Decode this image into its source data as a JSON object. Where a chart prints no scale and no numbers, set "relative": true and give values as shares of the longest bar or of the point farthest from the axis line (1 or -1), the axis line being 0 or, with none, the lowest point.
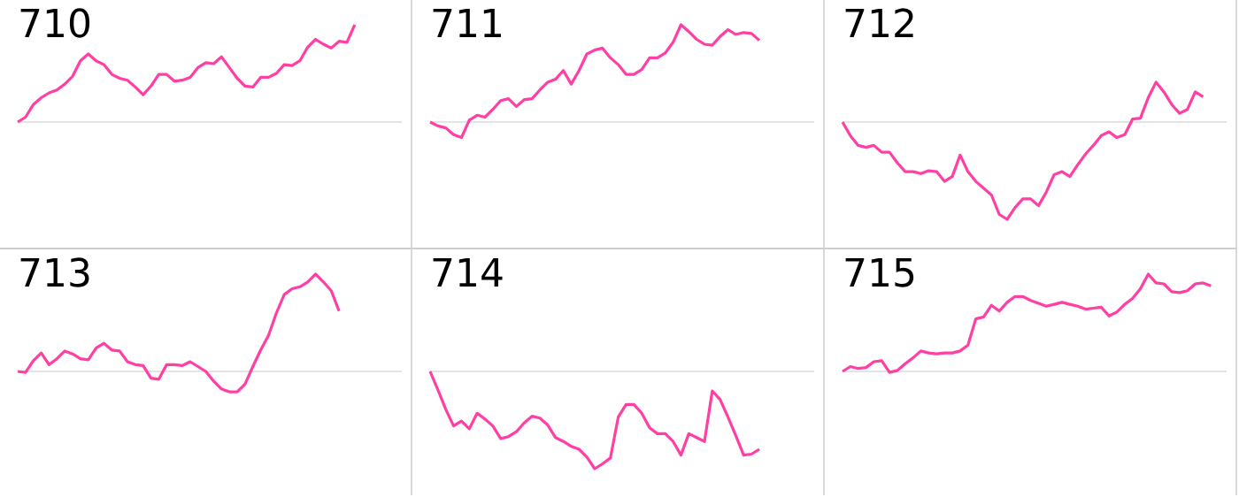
{
  "chart_data": [
    {
      "type": "line",
      "title": "710",
      "relative": true,
      "categories": [
        null,
        null,
        null,
        null,
        null,
        null,
        null,
        null,
        null,
        null,
        null,
        null,
        null,
        null,
        null,
        null,
        null,
        null,
        null,
        null,
        null,
        null,
        null,
        null,
        null,
        null,
        null,
        null,
        null,
        null,
        null,
        null,
        null,
        null,
        null,
        null,
        null,
        null,
        null,
        null,
        null,
        null,
        null,
        null,
        null,
        null,
        null,
        null,
        null,
        null
      ],
      "series": [
        {
          "color": "#ff3fa4",
          "values": [
            0,
            0.05,
            0.18,
            0.25,
            0.3,
            0.33,
            0.39,
            0.47,
            0.63,
            0.7,
            0.63,
            0.59,
            0.49,
            0.45,
            0.43,
            0.36,
            0.28,
            0.37,
            0.49,
            0.49,
            0.42,
            0.43,
            0.46,
            0.56,
            0.61,
            0.6,
            0.67,
            0.56,
            0.45,
            0.37,
            0.36,
            0.46,
            0.46,
            0.5,
            0.59,
            0.58,
            0.63,
            0.77,
            0.85,
            0.8,
            0.76,
            0.83,
            0.82,
            1,
            null,
            null,
            null,
            null,
            null,
            null
          ]
        }
      ]
    },
    {
      "type": "line",
      "title": "711",
      "relative": true,
      "categories": [
        null,
        null,
        null,
        null,
        null,
        null,
        null,
        null,
        null,
        null,
        null,
        null,
        null,
        null,
        null,
        null,
        null,
        null,
        null,
        null,
        null,
        null,
        null,
        null,
        null,
        null,
        null,
        null,
        null,
        null,
        null,
        null,
        null,
        null,
        null,
        null,
        null,
        null,
        null,
        null,
        null,
        null,
        null,
        null,
        null,
        null,
        null,
        null,
        null,
        null
      ],
      "series": [
        {
          "color": "#ff3fa4",
          "values": [
            0,
            -0.04,
            -0.06,
            -0.13,
            -0.16,
            0.02,
            0.07,
            0.05,
            0.13,
            0.22,
            0.24,
            0.16,
            0.23,
            0.24,
            0.33,
            0.41,
            0.44,
            0.53,
            0.39,
            0.53,
            0.7,
            0.74,
            0.76,
            0.66,
            0.59,
            0.49,
            0.49,
            0.54,
            0.66,
            0.66,
            0.71,
            0.82,
            1,
            0.93,
            0.85,
            0.8,
            0.79,
            0.88,
            0.95,
            0.9,
            0.92,
            0.91,
            0.84,
            null,
            null,
            null,
            null,
            null,
            null,
            null
          ]
        }
      ]
    },
    {
      "type": "line",
      "title": "712",
      "relative": true,
      "categories": [
        null,
        null,
        null,
        null,
        null,
        null,
        null,
        null,
        null,
        null,
        null,
        null,
        null,
        null,
        null,
        null,
        null,
        null,
        null,
        null,
        null,
        null,
        null,
        null,
        null,
        null,
        null,
        null,
        null,
        null,
        null,
        null,
        null,
        null,
        null,
        null,
        null,
        null,
        null,
        null,
        null,
        null,
        null,
        null,
        null,
        null,
        null,
        null,
        null,
        null
      ],
      "series": [
        {
          "color": "#ff3fa4",
          "values": [
            0,
            -0.14,
            -0.24,
            -0.26,
            -0.24,
            -0.31,
            -0.31,
            -0.42,
            -0.51,
            -0.51,
            -0.53,
            -0.5,
            -0.51,
            -0.61,
            -0.56,
            -0.34,
            -0.51,
            -0.61,
            -0.68,
            -0.75,
            -0.95,
            -1,
            -0.88,
            -0.79,
            -0.79,
            -0.86,
            -0.72,
            -0.54,
            -0.51,
            -0.56,
            -0.44,
            -0.33,
            -0.24,
            -0.14,
            -0.1,
            -0.16,
            -0.13,
            0.03,
            0.04,
            0.25,
            0.41,
            0.31,
            0.18,
            0.09,
            0.13,
            0.31,
            0.26,
            null,
            null,
            null
          ]
        }
      ]
    },
    {
      "type": "line",
      "title": "713",
      "relative": true,
      "categories": [
        null,
        null,
        null,
        null,
        null,
        null,
        null,
        null,
        null,
        null,
        null,
        null,
        null,
        null,
        null,
        null,
        null,
        null,
        null,
        null,
        null,
        null,
        null,
        null,
        null,
        null,
        null,
        null,
        null,
        null,
        null,
        null,
        null,
        null,
        null,
        null,
        null,
        null,
        null,
        null,
        null,
        null,
        null,
        null,
        null,
        null,
        null,
        null,
        null,
        null
      ],
      "series": [
        {
          "color": "#ff3fa4",
          "values": [
            0,
            -0.01,
            0.11,
            0.19,
            0.07,
            0.13,
            0.21,
            0.18,
            0.13,
            0.12,
            0.24,
            0.29,
            0.22,
            0.21,
            0.1,
            0.07,
            0.06,
            -0.07,
            -0.08,
            0.07,
            0.07,
            0.06,
            0.1,
            0.05,
            0,
            -0.1,
            -0.18,
            -0.21,
            -0.21,
            -0.13,
            0.05,
            0.22,
            0.37,
            0.6,
            0.79,
            0.85,
            0.87,
            0.92,
            1,
            0.92,
            0.83,
            0.62,
            null,
            null,
            null,
            null,
            null,
            null,
            null,
            null
          ]
        }
      ]
    },
    {
      "type": "line",
      "title": "714",
      "relative": true,
      "categories": [
        null,
        null,
        null,
        null,
        null,
        null,
        null,
        null,
        null,
        null,
        null,
        null,
        null,
        null,
        null,
        null,
        null,
        null,
        null,
        null,
        null,
        null,
        null,
        null,
        null,
        null,
        null,
        null,
        null,
        null,
        null,
        null,
        null,
        null,
        null,
        null,
        null,
        null,
        null,
        null,
        null,
        null,
        null,
        null,
        null,
        null,
        null,
        null,
        null,
        null
      ],
      "series": [
        {
          "color": "#ff3fa4",
          "values": [
            0,
            -0.19,
            -0.39,
            -0.56,
            -0.51,
            -0.59,
            -0.43,
            -0.49,
            -0.56,
            -0.69,
            -0.67,
            -0.62,
            -0.53,
            -0.46,
            -0.48,
            -0.55,
            -0.68,
            -0.72,
            -0.77,
            -0.8,
            -0.88,
            -1,
            -0.95,
            -0.89,
            -0.47,
            -0.34,
            -0.34,
            -0.43,
            -0.58,
            -0.64,
            -0.64,
            -0.72,
            -0.86,
            -0.64,
            -0.68,
            -0.72,
            -0.2,
            -0.29,
            -0.47,
            -0.66,
            -0.86,
            -0.85,
            -0.8,
            null,
            null,
            null,
            null,
            null,
            null,
            null
          ]
        }
      ]
    },
    {
      "type": "line",
      "title": "715",
      "relative": true,
      "categories": [
        null,
        null,
        null,
        null,
        null,
        null,
        null,
        null,
        null,
        null,
        null,
        null,
        null,
        null,
        null,
        null,
        null,
        null,
        null,
        null,
        null,
        null,
        null,
        null,
        null,
        null,
        null,
        null,
        null,
        null,
        null,
        null,
        null,
        null,
        null,
        null,
        null,
        null,
        null,
        null,
        null,
        null,
        null,
        null,
        null,
        null,
        null,
        null,
        null,
        null
      ],
      "series": [
        {
          "color": "#ff3fa4",
          "values": [
            0,
            0.05,
            0.03,
            0.04,
            0.1,
            0.11,
            -0.01,
            0.01,
            0.08,
            0.14,
            0.21,
            0.19,
            0.18,
            0.19,
            0.19,
            0.21,
            0.27,
            0.54,
            0.56,
            0.68,
            0.62,
            0.71,
            0.77,
            0.77,
            0.73,
            0.7,
            0.67,
            0.69,
            0.71,
            0.69,
            0.67,
            0.64,
            0.65,
            0.66,
            0.57,
            0.61,
            0.69,
            0.75,
            0.85,
            1,
            0.91,
            0.9,
            0.82,
            0.81,
            0.83,
            0.9,
            0.91,
            0.88,
            null,
            null
          ]
        }
      ]
    }
  ]
}
